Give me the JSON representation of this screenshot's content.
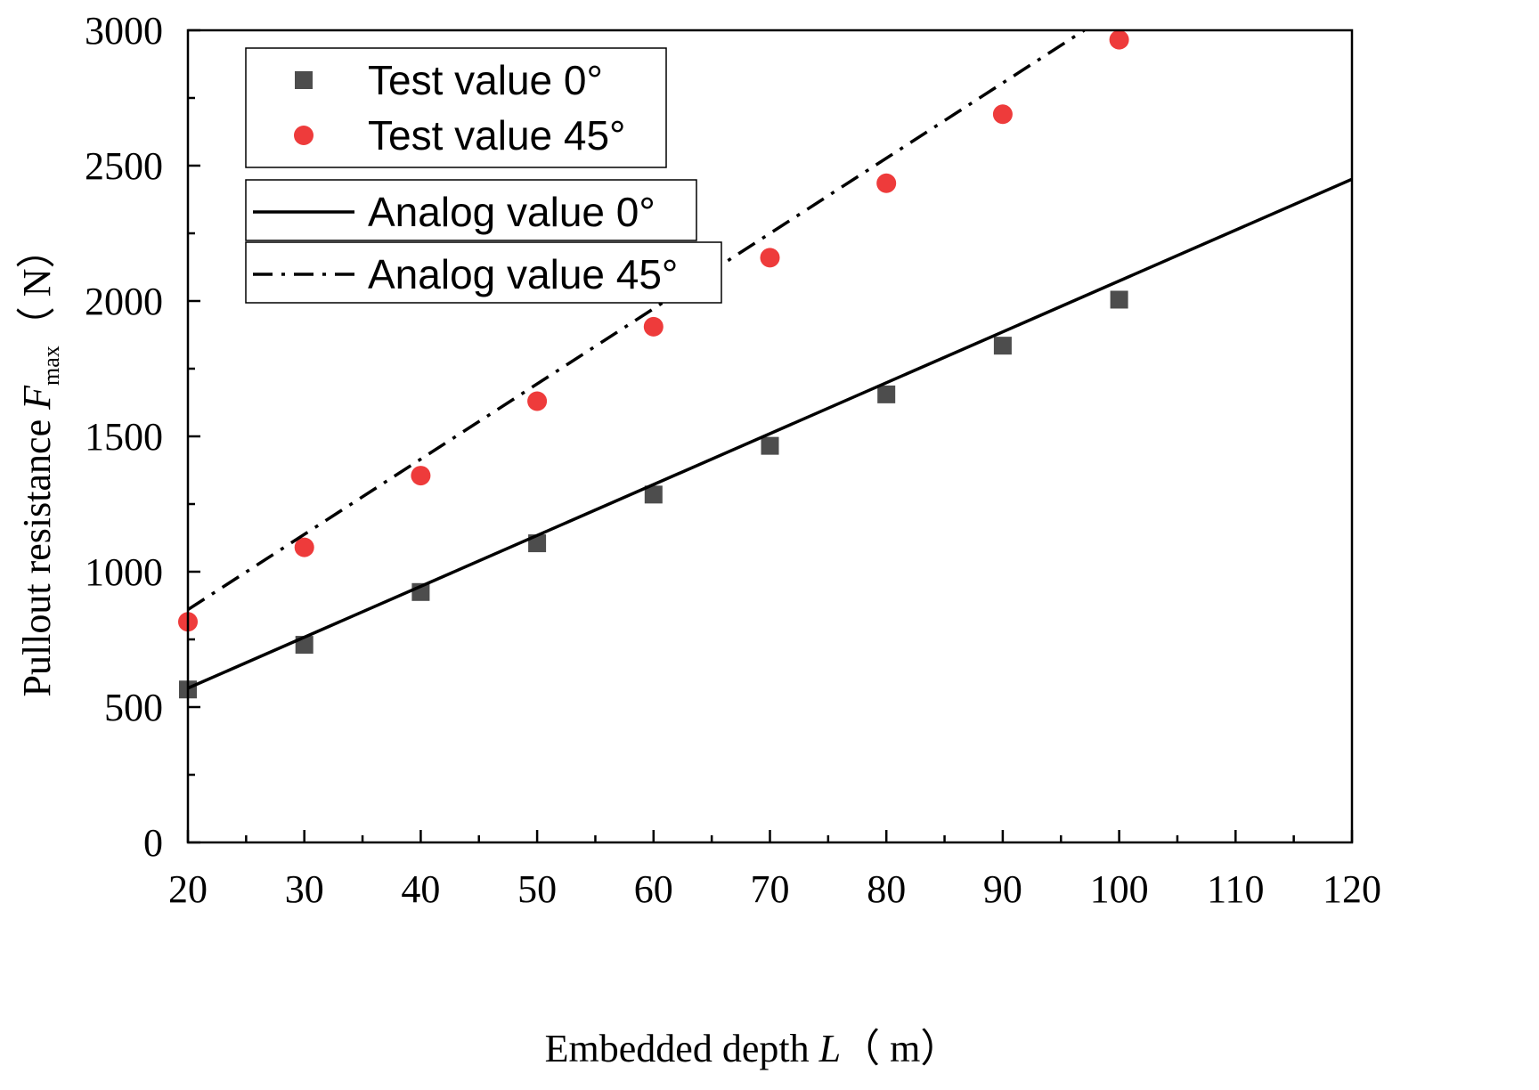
{
  "chart_data": {
    "type": "scatter",
    "title": "",
    "xlabel": {
      "prefix": "Embedded depth ",
      "symbol": "L",
      "unit": "（ m）"
    },
    "ylabel": {
      "prefix": "Pullout resistance ",
      "symbol": "F",
      "subscript": "max",
      "unit": "（ N）"
    },
    "xlim": [
      20,
      120
    ],
    "ylim": [
      0,
      3000
    ],
    "x_ticks": [
      "20",
      "30",
      "40",
      "50",
      "60",
      "70",
      "80",
      "90",
      "100",
      "110",
      "120"
    ],
    "y_ticks": [
      "0",
      "500",
      "1000",
      "1500",
      "2000",
      "2500",
      "3000"
    ],
    "grid": false,
    "series": [
      {
        "name": "Test value 0°",
        "kind": "scatter",
        "marker": "square",
        "color": "#4d4d4d",
        "x": [
          20,
          30,
          40,
          50,
          60,
          70,
          80,
          90,
          100
        ],
        "y": [
          565,
          730,
          925,
          1105,
          1285,
          1465,
          1655,
          1835,
          2005
        ]
      },
      {
        "name": "Test value 45°",
        "kind": "scatter",
        "marker": "circle",
        "color": "#ee3b3b",
        "x": [
          20,
          30,
          40,
          50,
          60,
          70,
          80,
          90,
          100
        ],
        "y": [
          815,
          1090,
          1355,
          1630,
          1905,
          2160,
          2435,
          2690,
          2965
        ]
      },
      {
        "name": "Analog value 0°",
        "kind": "line",
        "style": "solid",
        "color": "#000000",
        "x": [
          20,
          120
        ],
        "y": [
          570,
          2450
        ]
      },
      {
        "name": "Analog value 45°",
        "kind": "line",
        "style": "dashdot",
        "color": "#000000",
        "x": [
          20,
          97
        ],
        "y": [
          860,
          3000
        ]
      }
    ],
    "legend": {
      "placement": "top-left",
      "groups": [
        [
          "Test value 0°",
          "Test value 45°"
        ],
        [
          "Analog value 0°"
        ],
        [
          "Analog value 45°"
        ]
      ]
    }
  }
}
